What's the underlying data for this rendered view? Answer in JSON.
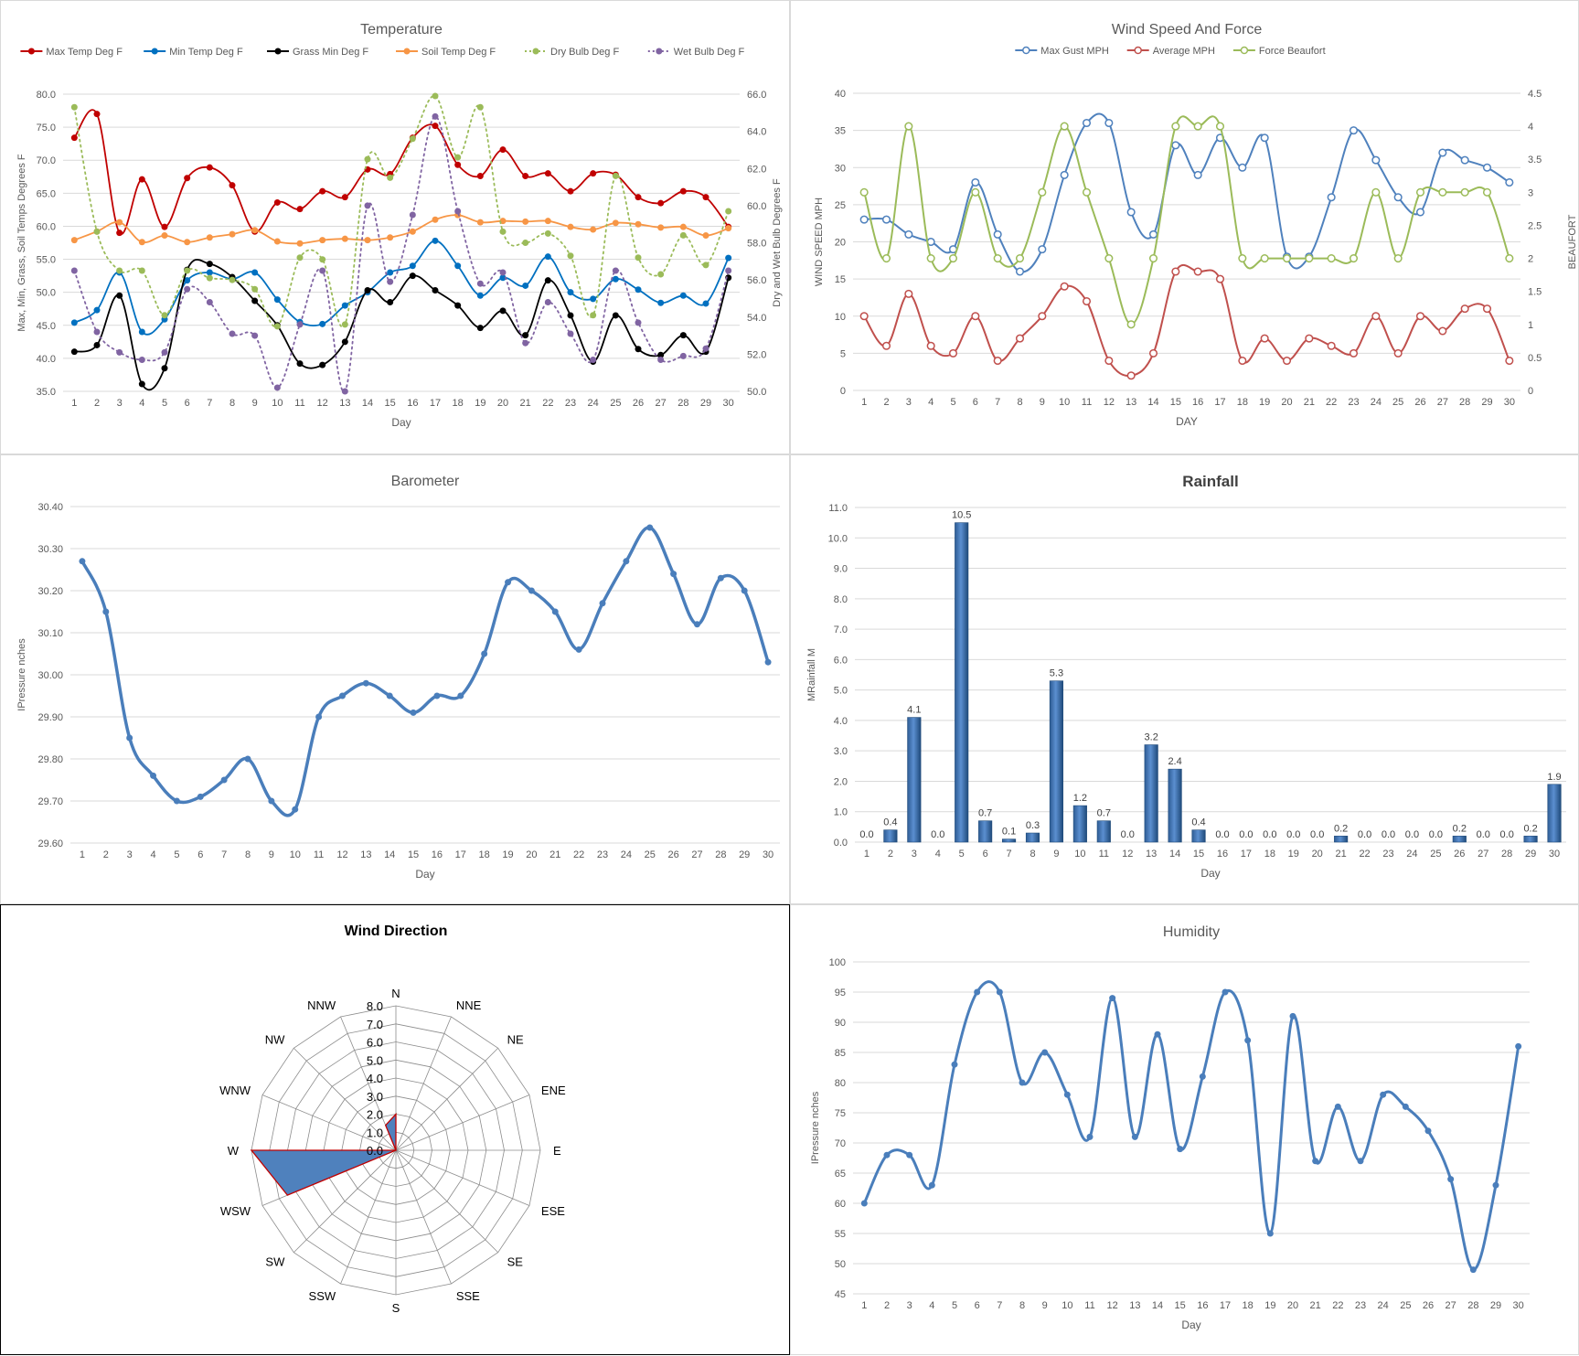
{
  "colors": {
    "max_temp": "#c00000",
    "min_temp": "#0070c0",
    "grass_min": "#000000",
    "soil_temp": "#f79646",
    "dry_bulb": "#9bbb59",
    "wet_bulb": "#8064a2",
    "max_gust": "#4f81bd",
    "average_mph": "#c0504d",
    "force_beaufort": "#9bbb59",
    "barometer": "#4a7ebb",
    "rainfall": "#4f81bd",
    "humidity": "#4a7ebb",
    "wind_fill": "#4f81bd",
    "wind_outline": "#c00000",
    "grid": "#d9d9d9"
  },
  "charts": {
    "temperature": {
      "chart_data": {
        "type": "line",
        "title": "Temperature",
        "xlabel": "Day",
        "ylabel": "Max, Min, Grass, Soil Temps Degrees F",
        "y2label": "Dry and Wet Bulb Degrees F",
        "ylim": [
          35,
          80
        ],
        "y2lim": [
          50,
          66
        ],
        "yticks": [
          "35.0",
          "40.0",
          "45.0",
          "50.0",
          "55.0",
          "60.0",
          "65.0",
          "70.0",
          "75.0",
          "80.0"
        ],
        "y2ticks": [
          "50.0",
          "52.0",
          "54.0",
          "56.0",
          "58.0",
          "60.0",
          "62.0",
          "64.0",
          "66.0"
        ],
        "x": [
          1,
          2,
          3,
          4,
          5,
          6,
          7,
          8,
          9,
          10,
          11,
          12,
          13,
          14,
          15,
          16,
          17,
          18,
          19,
          20,
          21,
          22,
          23,
          24,
          25,
          26,
          27,
          28,
          29,
          30
        ],
        "legend_position": "top",
        "series": [
          {
            "name": "Max Temp Deg F",
            "axis": "left",
            "dashed": false,
            "values": [
              73.4,
              77,
              59,
              67.1,
              59.9,
              67.3,
              68.9,
              66.2,
              59.2,
              63.6,
              62.6,
              65.3,
              64.4,
              68.6,
              67.9,
              73.4,
              75.2,
              69.3,
              67.6,
              71.6,
              67.6,
              68,
              65.3,
              68,
              67.8,
              64.4,
              63.5,
              65.3,
              64.4,
              59.9
            ]
          },
          {
            "name": "Min Temp Deg F",
            "axis": "left",
            "dashed": false,
            "values": [
              45.4,
              47.3,
              53,
              44,
              45.9,
              51.8,
              53,
              52,
              53,
              48.9,
              45.5,
              45.2,
              48,
              50,
              53,
              54,
              57.8,
              54,
              49.5,
              52.2,
              51,
              55.4,
              50,
              49,
              52,
              50.4,
              48.4,
              49.5,
              48.3,
              55.2
            ]
          },
          {
            "name": "Grass Min Deg F",
            "axis": "left",
            "dashed": false,
            "values": [
              41,
              42,
              49.5,
              36.1,
              38.5,
              53.4,
              54.3,
              52.3,
              48.7,
              45,
              39.2,
              39,
              42.5,
              50.3,
              48.5,
              52.5,
              50.3,
              48,
              44.6,
              47.2,
              43.5,
              51.8,
              46.5,
              39.5,
              46.5,
              41.4,
              40.5,
              43.5,
              41,
              52.2
            ]
          },
          {
            "name": "Soil Temp Deg F",
            "axis": "left",
            "dashed": false,
            "values": [
              57.9,
              59.2,
              60.6,
              57.6,
              58.6,
              57.6,
              58.3,
              58.8,
              59.4,
              57.7,
              57.4,
              57.9,
              58.1,
              57.9,
              58.3,
              59.2,
              61,
              61.7,
              60.6,
              60.8,
              60.7,
              60.8,
              59.9,
              59.5,
              60.5,
              60.3,
              59.8,
              59.9,
              58.6,
              59.7
            ]
          },
          {
            "name": "Dry Bulb Deg F",
            "axis": "right",
            "dashed": true,
            "values": [
              65.3,
              58.6,
              56.5,
              56.5,
              54.1,
              56.5,
              56.1,
              56,
              55.5,
              53.5,
              57.2,
              57.1,
              53.6,
              62.5,
              61.5,
              63.6,
              65.9,
              62.6,
              65.3,
              58.6,
              58,
              58.5,
              57.3,
              54.1,
              61.6,
              57.2,
              56.3,
              58.4,
              56.8,
              59.7
            ]
          },
          {
            "name": "Wet Bulb Deg F",
            "axis": "right",
            "dashed": true,
            "values": [
              56.5,
              53.2,
              52.1,
              51.7,
              52.1,
              55.5,
              54.8,
              53.1,
              53,
              50.2,
              53.6,
              56.5,
              50,
              60,
              55.9,
              59.5,
              64.8,
              59.7,
              55.8,
              56.4,
              52.6,
              54.8,
              53.1,
              51.7,
              56.5,
              53.7,
              51.7,
              51.9,
              52.3,
              56.5
            ]
          }
        ]
      }
    },
    "wind_speed": {
      "chart_data": {
        "type": "line",
        "title": "Wind Speed And Force",
        "xlabel": "DAY",
        "ylabel": "WIND SPEED MPH",
        "y2label": "BEAUFORT",
        "ylim": [
          0,
          40
        ],
        "y2lim": [
          0,
          4.5
        ],
        "yticks": [
          "0",
          "5",
          "10",
          "15",
          "20",
          "25",
          "30",
          "35",
          "40"
        ],
        "y2ticks": [
          "0",
          "0.5",
          "1",
          "1.5",
          "2",
          "2.5",
          "3",
          "3.5",
          "4",
          "4.5"
        ],
        "x": [
          1,
          2,
          3,
          4,
          5,
          6,
          7,
          8,
          9,
          10,
          11,
          12,
          13,
          14,
          15,
          16,
          17,
          18,
          19,
          20,
          21,
          22,
          23,
          24,
          25,
          26,
          27,
          28,
          29,
          30
        ],
        "legend_position": "top",
        "series": [
          {
            "name": "Max Gust MPH",
            "axis": "left",
            "values": [
              23,
              23,
              21,
              20,
              19,
              28,
              21,
              16,
              19,
              29,
              36,
              36,
              24,
              21,
              33,
              29,
              34,
              30,
              34,
              18,
              18,
              26,
              35,
              31,
              26,
              24,
              32,
              31,
              30,
              28
            ]
          },
          {
            "name": "Average MPH",
            "axis": "left",
            "values": [
              10,
              6,
              13,
              6,
              5,
              10,
              4,
              7,
              10,
              14,
              12,
              4,
              2,
              5,
              16,
              16,
              15,
              4,
              7,
              4,
              7,
              6,
              5,
              10,
              5,
              10,
              8,
              11,
              11,
              4
            ]
          },
          {
            "name": "Force Beaufort",
            "axis": "right",
            "values": [
              3,
              2,
              4,
              2,
              2,
              3,
              2,
              2,
              3,
              4,
              3,
              2,
              1,
              2,
              4,
              4,
              4,
              2,
              2,
              2,
              2,
              2,
              2,
              3,
              2,
              3,
              3,
              3,
              3,
              2
            ]
          }
        ]
      }
    },
    "barometer": {
      "chart_data": {
        "type": "line",
        "title": "Barometer",
        "xlabel": "Day",
        "ylabel": "IPressure nches",
        "ylim": [
          29.6,
          30.4
        ],
        "yticks": [
          "29.60",
          "29.70",
          "29.80",
          "29.90",
          "30.00",
          "30.10",
          "30.20",
          "30.30",
          "30.40"
        ],
        "x": [
          1,
          2,
          3,
          4,
          5,
          6,
          7,
          8,
          9,
          10,
          11,
          12,
          13,
          14,
          15,
          16,
          17,
          18,
          19,
          20,
          21,
          22,
          23,
          24,
          25,
          26,
          27,
          28,
          29,
          30
        ],
        "series": [
          {
            "name": "",
            "values": [
              30.27,
              30.15,
              29.85,
              29.76,
              29.7,
              29.71,
              29.75,
              29.8,
              29.7,
              29.68,
              29.9,
              29.95,
              29.98,
              29.95,
              29.91,
              29.95,
              29.95,
              30.05,
              30.22,
              30.2,
              30.15,
              30.06,
              30.17,
              30.27,
              30.35,
              30.24,
              30.12,
              30.23,
              30.2,
              30.03
            ]
          }
        ]
      }
    },
    "rainfall": {
      "chart_data": {
        "type": "bar",
        "title": "Rainfall",
        "xlabel": "Day",
        "ylabel": "MRainfall M",
        "ylim": [
          0,
          11
        ],
        "yticks": [
          "0.0",
          "1.0",
          "2.0",
          "3.0",
          "4.0",
          "5.0",
          "6.0",
          "7.0",
          "8.0",
          "9.0",
          "10.0",
          "11.0"
        ],
        "categories": [
          "1",
          "2",
          "3",
          "4",
          "5",
          "6",
          "7",
          "8",
          "9",
          "10",
          "11",
          "12",
          "13",
          "14",
          "15",
          "16",
          "17",
          "18",
          "19",
          "20",
          "21",
          "22",
          "23",
          "24",
          "25",
          "26",
          "27",
          "28",
          "29",
          "30"
        ],
        "values": [
          0,
          0.4,
          4.1,
          0,
          10.5,
          0.7,
          0.1,
          0.3,
          5.3,
          1.2,
          0.7,
          0,
          3.2,
          2.4,
          0.4,
          0,
          0,
          0,
          0,
          0,
          0.2,
          0,
          0,
          0,
          0,
          0.2,
          0,
          0,
          0.2,
          1.9
        ],
        "data_labels": [
          "0.0",
          "0.4",
          "4.1",
          "0.0",
          "10.5",
          "0.7",
          "0.1",
          "0.3",
          "5.3",
          "1.2",
          "0.7",
          "0.0",
          "3.2",
          "2.4",
          "0.4",
          "0.0",
          "0.0",
          "0.0",
          "0.0",
          "0.0",
          "0.2",
          "0.0",
          "0.0",
          "0.0",
          "0.0",
          "0.2",
          "0.0",
          "0.0",
          "0.2",
          "1.9"
        ]
      }
    },
    "wind_direction": {
      "chart_data": {
        "type": "radar",
        "title": "Wind Direction",
        "categories": [
          "N",
          "NNE",
          "NE",
          "ENE",
          "E",
          "ESE",
          "SE",
          "SSE",
          "S",
          "SSW",
          "SW",
          "WSW",
          "W",
          "WNW",
          "NW",
          "NNW"
        ],
        "values": [
          2,
          0,
          0,
          0,
          0,
          0,
          0,
          0,
          0,
          0,
          0,
          6.5,
          8,
          0,
          0,
          1.5
        ],
        "rlim": [
          0,
          8
        ],
        "rticks": [
          "0.0",
          "1.0",
          "2.0",
          "3.0",
          "4.0",
          "5.0",
          "6.0",
          "7.0",
          "8.0"
        ]
      }
    },
    "humidity": {
      "chart_data": {
        "type": "line",
        "title": "Humidity",
        "xlabel": "Day",
        "ylabel": "IPressure nches",
        "ylim": [
          45,
          100
        ],
        "yticks": [
          "45",
          "50",
          "55",
          "60",
          "65",
          "70",
          "75",
          "80",
          "85",
          "90",
          "95",
          "100"
        ],
        "x": [
          1,
          2,
          3,
          4,
          5,
          6,
          7,
          8,
          9,
          10,
          11,
          12,
          13,
          14,
          15,
          16,
          17,
          18,
          19,
          20,
          21,
          22,
          23,
          24,
          25,
          26,
          27,
          28,
          29,
          30
        ],
        "series": [
          {
            "name": "",
            "values": [
              60,
              68,
              68,
              63,
              83,
              95,
              95,
              80,
              85,
              78,
              71,
              94,
              71,
              88,
              69,
              81,
              95,
              87,
              55,
              91,
              67,
              76,
              67,
              78,
              76,
              72,
              64,
              49,
              63,
              86
            ]
          }
        ]
      }
    }
  }
}
